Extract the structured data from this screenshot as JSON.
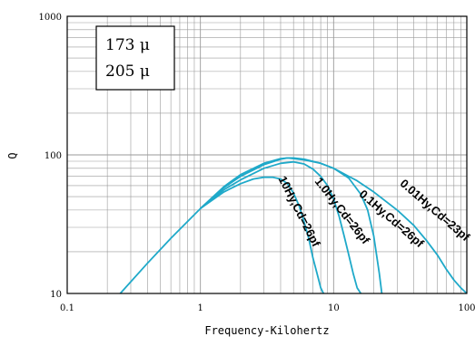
{
  "chart_data": {
    "type": "line",
    "xscale": "log",
    "yscale": "log",
    "xlim": [
      0.1,
      100
    ],
    "ylim": [
      10,
      1000
    ],
    "xlabel": "Frequency-Kilohertz",
    "ylabel": "Q",
    "x_tick_labels": [
      "0.1",
      "1",
      "10",
      "100"
    ],
    "y_tick_labels": [
      "10",
      "100",
      "1000"
    ],
    "legend": [
      "173 μ",
      "205 μ"
    ],
    "colors": {
      "curve": "#1fa9c9",
      "grid": "#9a9a9a",
      "frame": "#000000"
    },
    "grid": true,
    "series": [
      {
        "name": "10Hy,Cd=26pf",
        "x": [
          0.25,
          0.4,
          0.6,
          1.0,
          1.5,
          2.0,
          2.5,
          3.0,
          3.5,
          4.0,
          4.5,
          5.0,
          5.5,
          6.0,
          6.5,
          7.0,
          7.5,
          8.0,
          8.4
        ],
        "y": [
          10,
          16.5,
          25,
          41,
          54,
          62,
          67,
          69,
          69,
          67,
          62,
          53,
          43,
          33,
          25,
          18,
          14,
          11,
          10
        ]
      },
      {
        "name": "1.0Hy,Cd=26pf",
        "x": [
          1.0,
          1.5,
          2.0,
          3.0,
          4.0,
          5.0,
          6.0,
          7.0,
          8.0,
          9.0,
          10.0,
          11.0,
          12.0,
          13.0,
          14.0,
          15.0,
          16.0
        ],
        "y": [
          41,
          56,
          66,
          80,
          87,
          89,
          86,
          79,
          70,
          60,
          48,
          36,
          26,
          19,
          14,
          11,
          10
        ]
      },
      {
        "name": "0.1Hy,Cd=26pf",
        "x": [
          1.0,
          1.5,
          2.0,
          3.0,
          4.0,
          4.5,
          5.0,
          6.0,
          8.0,
          10.0,
          13.0,
          16.0,
          18.0,
          20.0,
          21.0,
          22.0,
          23.0
        ],
        "y": [
          41,
          58,
          70,
          85,
          93,
          95,
          95,
          93,
          87,
          80,
          68,
          52,
          40,
          26,
          19,
          14,
          10
        ]
      },
      {
        "name": "0.01Hy,Cd=23pf",
        "x": [
          1.0,
          1.5,
          2.0,
          3.0,
          4.0,
          4.5,
          5.0,
          6.0,
          8.0,
          10.0,
          15.0,
          20.0,
          30.0,
          40.0,
          50.0,
          60.0,
          70.0,
          80.0,
          90.0,
          100.0
        ],
        "y": [
          41,
          59,
          72,
          87,
          94,
          95,
          94,
          92,
          87,
          80,
          65,
          54,
          40,
          31,
          24,
          19,
          15,
          12.5,
          11,
          10
        ]
      }
    ],
    "annotations": [
      {
        "text": "10Hy,Cd=26pf",
        "x": 5.2,
        "y": 38,
        "angle_deg": 63
      },
      {
        "text": "1.0Hy,Cd=26pf",
        "x": 11.0,
        "y": 38,
        "angle_deg": 52
      },
      {
        "text": "0.1Hy,Cd=26pf",
        "x": 26.0,
        "y": 33,
        "angle_deg": 41
      },
      {
        "text": "0.01Hy,Cd=23pf",
        "x": 55.0,
        "y": 38,
        "angle_deg": 41
      }
    ]
  }
}
